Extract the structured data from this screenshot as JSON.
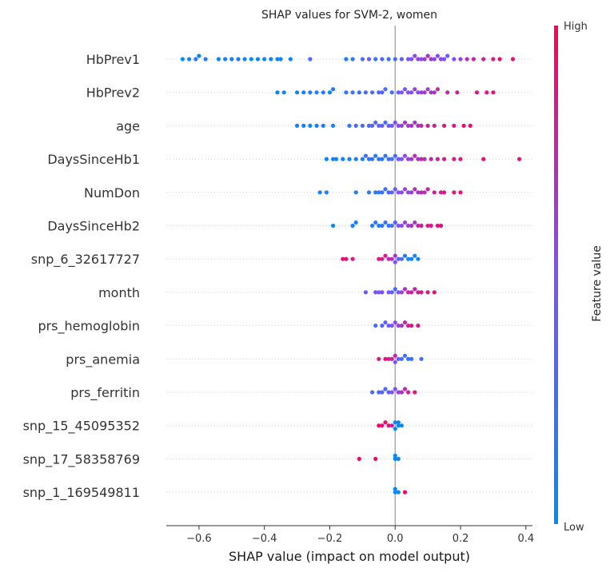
{
  "chart_data": {
    "type": "scatter",
    "subtype": "shap-beeswarm",
    "title": "SHAP values for SVM-2, women",
    "xlabel": "SHAP value (impact on model output)",
    "xlim": [
      -0.7,
      0.42
    ],
    "xticks": [
      -0.6,
      -0.4,
      -0.2,
      0.0,
      0.2,
      0.4
    ],
    "xtick_labels": [
      "−0.6",
      "−0.4",
      "−0.2",
      "0.0",
      "0.2",
      "0.4"
    ],
    "grid": false,
    "colorbar": {
      "label": "Feature value",
      "high_label": "High",
      "low_label": "Low",
      "low_color": "#008bfb",
      "mid_color": "#7c52ff",
      "high_color": "#ff0052"
    },
    "features": [
      {
        "name": "HbPrev1",
        "points": [
          [
            -0.65,
            0
          ],
          [
            -0.63,
            0.1
          ],
          [
            -0.61,
            0.2
          ],
          [
            -0.6,
            0.05
          ],
          [
            -0.58,
            0.15
          ],
          [
            -0.54,
            0
          ],
          [
            -0.52,
            0.1
          ],
          [
            -0.5,
            0.05
          ],
          [
            -0.48,
            0.15
          ],
          [
            -0.46,
            0.1
          ],
          [
            -0.44,
            0
          ],
          [
            -0.42,
            0
          ],
          [
            -0.4,
            0.1
          ],
          [
            -0.38,
            0.05
          ],
          [
            -0.36,
            0
          ],
          [
            -0.35,
            0.1
          ],
          [
            -0.32,
            0.05
          ],
          [
            -0.26,
            0.3
          ],
          [
            -0.15,
            0.1
          ],
          [
            -0.13,
            0.2
          ],
          [
            -0.1,
            0.3
          ],
          [
            -0.08,
            0.4
          ],
          [
            -0.06,
            0.2
          ],
          [
            -0.04,
            0.35
          ],
          [
            -0.02,
            0.25
          ],
          [
            0.0,
            0.3
          ],
          [
            0.02,
            0.4
          ],
          [
            0.04,
            0.45
          ],
          [
            0.05,
            0.5
          ],
          [
            0.06,
            0.55
          ],
          [
            0.07,
            0.6
          ],
          [
            0.08,
            0.55
          ],
          [
            0.09,
            0.65
          ],
          [
            0.1,
            0.7
          ],
          [
            0.11,
            0.65
          ],
          [
            0.12,
            0.6
          ],
          [
            0.13,
            0.55
          ],
          [
            0.14,
            0.6
          ],
          [
            0.15,
            0.5
          ],
          [
            0.16,
            0.45
          ],
          [
            0.18,
            0.5
          ],
          [
            0.2,
            0.6
          ],
          [
            0.22,
            0.7
          ],
          [
            0.24,
            0.75
          ],
          [
            0.27,
            0.8
          ],
          [
            0.3,
            0.85
          ],
          [
            0.32,
            0.9
          ],
          [
            0.36,
            0.9
          ]
        ]
      },
      {
        "name": "HbPrev2",
        "points": [
          [
            -0.36,
            0
          ],
          [
            -0.34,
            0.05
          ],
          [
            -0.3,
            0.05
          ],
          [
            -0.28,
            0.1
          ],
          [
            -0.26,
            0.15
          ],
          [
            -0.24,
            0.1
          ],
          [
            -0.22,
            0.2
          ],
          [
            -0.2,
            0.1
          ],
          [
            -0.19,
            0.15
          ],
          [
            -0.15,
            0.2
          ],
          [
            -0.13,
            0.25
          ],
          [
            -0.11,
            0.2
          ],
          [
            -0.09,
            0.3
          ],
          [
            -0.07,
            0.25
          ],
          [
            -0.05,
            0.3
          ],
          [
            -0.04,
            0.35
          ],
          [
            -0.03,
            0.3
          ],
          [
            -0.01,
            0.25
          ],
          [
            0.01,
            0.4
          ],
          [
            0.02,
            0.5
          ],
          [
            0.03,
            0.45
          ],
          [
            0.04,
            0.55
          ],
          [
            0.05,
            0.5
          ],
          [
            0.06,
            0.6
          ],
          [
            0.07,
            0.55
          ],
          [
            0.08,
            0.6
          ],
          [
            0.09,
            0.65
          ],
          [
            0.1,
            0.6
          ],
          [
            0.11,
            0.7
          ],
          [
            0.12,
            0.65
          ],
          [
            0.13,
            0.75
          ],
          [
            0.16,
            0.75
          ],
          [
            0.19,
            0.8
          ],
          [
            0.25,
            0.85
          ],
          [
            0.28,
            0.85
          ],
          [
            0.3,
            0.9
          ]
        ]
      },
      {
        "name": "age",
        "points": [
          [
            -0.3,
            0.05
          ],
          [
            -0.28,
            0.1
          ],
          [
            -0.26,
            0
          ],
          [
            -0.24,
            0.1
          ],
          [
            -0.22,
            0.15
          ],
          [
            -0.19,
            0.1
          ],
          [
            -0.14,
            0.2
          ],
          [
            -0.12,
            0.25
          ],
          [
            -0.1,
            0.3
          ],
          [
            -0.08,
            0.3
          ],
          [
            -0.07,
            0.35
          ],
          [
            -0.06,
            0.3
          ],
          [
            -0.05,
            0.4
          ],
          [
            -0.04,
            0.35
          ],
          [
            -0.03,
            0.3
          ],
          [
            -0.02,
            0.45
          ],
          [
            -0.01,
            0.4
          ],
          [
            0.0,
            0.5
          ],
          [
            0.01,
            0.55
          ],
          [
            0.02,
            0.6
          ],
          [
            0.03,
            0.65
          ],
          [
            0.04,
            0.6
          ],
          [
            0.05,
            0.7
          ],
          [
            0.06,
            0.65
          ],
          [
            0.07,
            0.7
          ],
          [
            0.08,
            0.75
          ],
          [
            0.1,
            0.8
          ],
          [
            0.12,
            0.8
          ],
          [
            0.15,
            0.85
          ],
          [
            0.18,
            0.85
          ],
          [
            0.21,
            0.9
          ],
          [
            0.23,
            0.9
          ]
        ]
      },
      {
        "name": "DaysSinceHb1",
        "points": [
          [
            -0.21,
            0.05
          ],
          [
            -0.19,
            0.1
          ],
          [
            -0.18,
            0.1
          ],
          [
            -0.16,
            0.05
          ],
          [
            -0.14,
            0.1
          ],
          [
            -0.12,
            0.1
          ],
          [
            -0.1,
            0.15
          ],
          [
            -0.09,
            0.2
          ],
          [
            -0.08,
            0.15
          ],
          [
            -0.07,
            0.2
          ],
          [
            -0.06,
            0.1
          ],
          [
            -0.05,
            0.2
          ],
          [
            -0.04,
            0.15
          ],
          [
            -0.03,
            0.2
          ],
          [
            -0.02,
            0.2
          ],
          [
            -0.01,
            0.25
          ],
          [
            0.0,
            0.3
          ],
          [
            0.01,
            0.45
          ],
          [
            0.02,
            0.5
          ],
          [
            0.03,
            0.55
          ],
          [
            0.04,
            0.6
          ],
          [
            0.05,
            0.65
          ],
          [
            0.06,
            0.7
          ],
          [
            0.07,
            0.65
          ],
          [
            0.08,
            0.75
          ],
          [
            0.09,
            0.7
          ],
          [
            0.11,
            0.75
          ],
          [
            0.13,
            0.8
          ],
          [
            0.15,
            0.85
          ],
          [
            0.18,
            0.85
          ],
          [
            0.2,
            0.85
          ],
          [
            0.27,
            0.9
          ],
          [
            0.38,
            0.9
          ]
        ]
      },
      {
        "name": "NumDon",
        "points": [
          [
            -0.23,
            0.1
          ],
          [
            -0.21,
            0.15
          ],
          [
            -0.12,
            0.15
          ],
          [
            -0.08,
            0.2
          ],
          [
            -0.06,
            0.15
          ],
          [
            -0.05,
            0.25
          ],
          [
            -0.04,
            0.2
          ],
          [
            -0.03,
            0.25
          ],
          [
            -0.02,
            0.3
          ],
          [
            -0.01,
            0.35
          ],
          [
            0.0,
            0.4
          ],
          [
            0.01,
            0.5
          ],
          [
            0.02,
            0.55
          ],
          [
            0.03,
            0.6
          ],
          [
            0.04,
            0.55
          ],
          [
            0.05,
            0.65
          ],
          [
            0.06,
            0.7
          ],
          [
            0.07,
            0.65
          ],
          [
            0.08,
            0.75
          ],
          [
            0.09,
            0.7
          ],
          [
            0.1,
            0.75
          ],
          [
            0.12,
            0.8
          ],
          [
            0.14,
            0.8
          ],
          [
            0.15,
            0.85
          ],
          [
            0.18,
            0.85
          ],
          [
            0.2,
            0.9
          ]
        ]
      },
      {
        "name": "DaysSinceHb2",
        "points": [
          [
            -0.19,
            0.05
          ],
          [
            -0.13,
            0.1
          ],
          [
            -0.12,
            0.1
          ],
          [
            -0.07,
            0.15
          ],
          [
            -0.06,
            0.2
          ],
          [
            -0.05,
            0.15
          ],
          [
            -0.04,
            0.2
          ],
          [
            -0.03,
            0.25
          ],
          [
            -0.02,
            0.2
          ],
          [
            -0.01,
            0.3
          ],
          [
            0.0,
            0.35
          ],
          [
            0.01,
            0.45
          ],
          [
            0.02,
            0.55
          ],
          [
            0.03,
            0.6
          ],
          [
            0.04,
            0.6
          ],
          [
            0.05,
            0.7
          ],
          [
            0.06,
            0.65
          ],
          [
            0.07,
            0.75
          ],
          [
            0.08,
            0.8
          ],
          [
            0.1,
            0.8
          ],
          [
            0.11,
            0.85
          ],
          [
            0.13,
            0.85
          ],
          [
            0.14,
            0.9
          ]
        ]
      },
      {
        "name": "snp_6_32617727",
        "points": [
          [
            -0.16,
            0.9
          ],
          [
            -0.15,
            0.9
          ],
          [
            -0.13,
            0.85
          ],
          [
            -0.05,
            0.85
          ],
          [
            -0.04,
            0.8
          ],
          [
            -0.03,
            0.85
          ],
          [
            -0.02,
            0.75
          ],
          [
            -0.01,
            0.7
          ],
          [
            0.0,
            0.65
          ],
          [
            0.0,
            0.5
          ],
          [
            0.01,
            0.4
          ],
          [
            0.02,
            0.3
          ],
          [
            0.03,
            0.15
          ],
          [
            0.04,
            0.1
          ],
          [
            0.05,
            0.05
          ],
          [
            0.06,
            0.1
          ],
          [
            0.07,
            0.05
          ]
        ]
      },
      {
        "name": "month",
        "points": [
          [
            -0.09,
            0.4
          ],
          [
            -0.06,
            0.5
          ],
          [
            -0.05,
            0.45
          ],
          [
            -0.04,
            0.55
          ],
          [
            -0.02,
            0.5
          ],
          [
            -0.01,
            0.4
          ],
          [
            0.0,
            0.3
          ],
          [
            0.01,
            0.5
          ],
          [
            0.02,
            0.6
          ],
          [
            0.03,
            0.7
          ],
          [
            0.04,
            0.75
          ],
          [
            0.05,
            0.8
          ],
          [
            0.06,
            0.75
          ],
          [
            0.07,
            0.8
          ],
          [
            0.08,
            0.85
          ],
          [
            0.1,
            0.85
          ],
          [
            0.12,
            0.9
          ]
        ]
      },
      {
        "name": "prs_hemoglobin",
        "points": [
          [
            -0.06,
            0.3
          ],
          [
            -0.04,
            0.35
          ],
          [
            -0.03,
            0.4
          ],
          [
            -0.02,
            0.45
          ],
          [
            -0.01,
            0.5
          ],
          [
            0.0,
            0.55
          ],
          [
            0.01,
            0.6
          ],
          [
            0.02,
            0.65
          ],
          [
            0.03,
            0.75
          ],
          [
            0.04,
            0.8
          ],
          [
            0.05,
            0.85
          ],
          [
            0.07,
            0.85
          ]
        ]
      },
      {
        "name": "prs_anemia",
        "points": [
          [
            -0.05,
            0.85
          ],
          [
            -0.03,
            0.9
          ],
          [
            -0.02,
            0.85
          ],
          [
            -0.01,
            0.8
          ],
          [
            0.0,
            0.75
          ],
          [
            0.0,
            0.5
          ],
          [
            0.01,
            0.4
          ],
          [
            0.02,
            0.3
          ],
          [
            0.03,
            0.25
          ],
          [
            0.04,
            0.2
          ],
          [
            0.05,
            0.2
          ],
          [
            0.08,
            0.3
          ]
        ]
      },
      {
        "name": "prs_ferritin",
        "points": [
          [
            -0.07,
            0.3
          ],
          [
            -0.05,
            0.3
          ],
          [
            -0.04,
            0.35
          ],
          [
            -0.03,
            0.3
          ],
          [
            -0.02,
            0.4
          ],
          [
            -0.01,
            0.45
          ],
          [
            0.0,
            0.5
          ],
          [
            0.01,
            0.6
          ],
          [
            0.02,
            0.7
          ],
          [
            0.03,
            0.75
          ],
          [
            0.04,
            0.8
          ],
          [
            0.06,
            0.85
          ]
        ]
      },
      {
        "name": "snp_15_45095352",
        "points": [
          [
            -0.05,
            0.95
          ],
          [
            -0.04,
            0.9
          ],
          [
            -0.03,
            0.95
          ],
          [
            -0.02,
            0.9
          ],
          [
            -0.01,
            0.85
          ],
          [
            0.0,
            0.05
          ],
          [
            0.0,
            0.0
          ],
          [
            0.01,
            0.05
          ],
          [
            0.01,
            0.0
          ],
          [
            0.02,
            0.0
          ]
        ]
      },
      {
        "name": "snp_17_58358769",
        "points": [
          [
            -0.11,
            0.95
          ],
          [
            -0.06,
            0.95
          ],
          [
            0.0,
            0.05
          ],
          [
            0.0,
            0.0
          ],
          [
            0.01,
            0.05
          ]
        ]
      },
      {
        "name": "snp_1_169549811",
        "points": [
          [
            0.0,
            0.05
          ],
          [
            0.0,
            0.0
          ],
          [
            0.01,
            0.05
          ],
          [
            0.03,
            0.95
          ]
        ]
      }
    ]
  }
}
